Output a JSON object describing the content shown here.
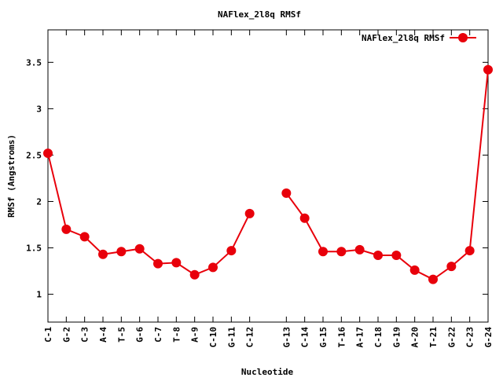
{
  "chart_data": {
    "type": "line",
    "title": "NAFlex_2l8q RMSf",
    "xlabel": "Nucleotide",
    "ylabel": "RMSf (Angstroms)",
    "ylim": [
      0.7,
      3.85
    ],
    "yticks": [
      "1",
      "1.5",
      "2",
      "2.5",
      "3",
      "3.5"
    ],
    "yticks_values": [
      1,
      1.5,
      2,
      2.5,
      3,
      3.5
    ],
    "categories": [
      "C-1",
      "G-2",
      "C-3",
      "A-4",
      "T-5",
      "G-6",
      "C-7",
      "T-8",
      "A-9",
      "C-10",
      "G-11",
      "C-12",
      "G-13",
      "C-14",
      "G-15",
      "T-16",
      "A-17",
      "C-18",
      "G-19",
      "A-20",
      "T-21",
      "G-22",
      "C-23",
      "G-24"
    ],
    "x_index": [
      1,
      2,
      3,
      4,
      5,
      6,
      7,
      8,
      9,
      10,
      11,
      12,
      14,
      15,
      16,
      17,
      18,
      19,
      20,
      21,
      22,
      23,
      24,
      25
    ],
    "xlim": [
      1,
      25
    ],
    "legend_position": "top-right",
    "grid": false,
    "series": [
      {
        "name": "NAFlex_2l8q RMSf",
        "color": "#e8000b",
        "segments": [
          [
            2.52,
            1.7,
            1.62,
            1.43,
            1.46,
            1.49,
            1.33,
            1.34,
            1.21,
            1.29,
            1.47,
            1.87
          ],
          [
            2.09,
            1.82,
            1.46,
            1.46,
            1.48,
            1.42,
            1.42,
            1.26,
            1.16,
            1.3,
            1.47,
            3.42
          ]
        ]
      }
    ]
  }
}
